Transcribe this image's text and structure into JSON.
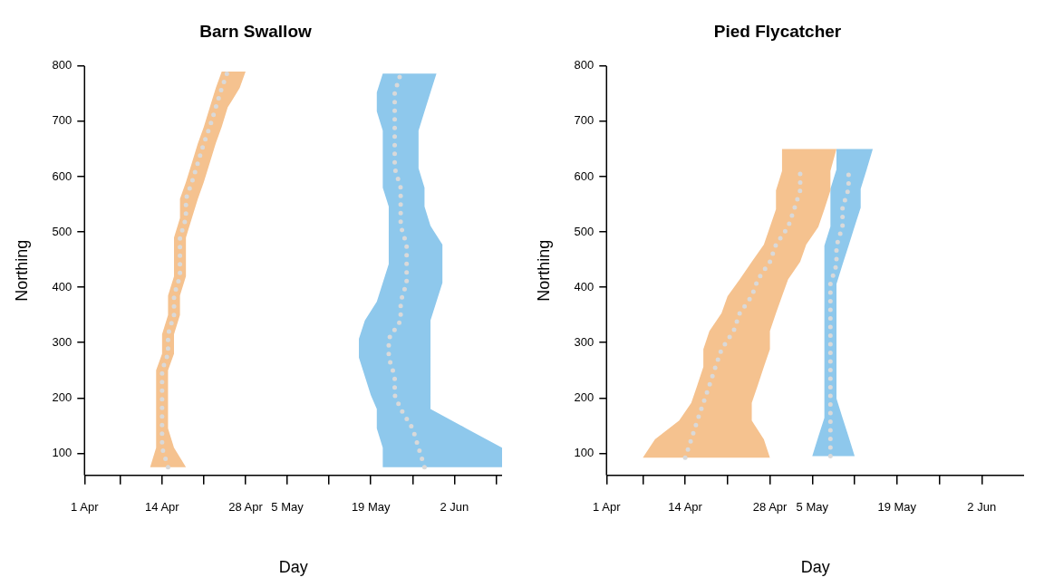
{
  "chart_data": [
    {
      "type": "line",
      "title": "Barn Swallow",
      "xlabel": "Day",
      "ylabel": "Northing",
      "xlim": [
        "--04-01",
        "--06-10"
      ],
      "ylim": [
        60,
        800
      ],
      "xticks": [
        {
          "value": "--04-01",
          "label": "1 Apr"
        },
        {
          "value": "--04-07",
          "label": null
        },
        {
          "value": "--04-14",
          "label": "14 Apr"
        },
        {
          "value": "--04-21",
          "label": null
        },
        {
          "value": "--04-28",
          "label": "28 Apr"
        },
        {
          "value": "--05-05",
          "label": "5 May"
        },
        {
          "value": "--05-12",
          "label": null
        },
        {
          "value": "--05-19",
          "label": "19 May"
        },
        {
          "value": "--05-26",
          "label": null
        },
        {
          "value": "--06-02",
          "label": "2 Jun"
        },
        {
          "value": "--06-09",
          "label": null
        }
      ],
      "yticks": [
        100,
        200,
        300,
        400,
        500,
        600,
        700,
        800
      ],
      "grid": false,
      "legend": false,
      "line_style": "dotted",
      "series": [
        {
          "type": "area",
          "color": "#f5c28f",
          "x": [
            "--04-12",
            "--04-13",
            "--04-13",
            "--04-13",
            "--04-13",
            "--04-13",
            "--04-14",
            "--04-14",
            "--04-15",
            "--04-15",
            "--04-16",
            "--04-16",
            "--04-16",
            "--04-17",
            "--04-17",
            "--04-18",
            "--04-19",
            "--04-20",
            "--04-21",
            "--04-22",
            "--04-23",
            "--04-24",
            "--04-28",
            "--04-27",
            "--04-25",
            "--04-24",
            "--04-23",
            "--04-22",
            "--04-21",
            "--04-20",
            "--04-19",
            "--04-18",
            "--04-18",
            "--04-18",
            "--04-17",
            "--04-17",
            "--04-16",
            "--04-16",
            "--04-15",
            "--04-15",
            "--04-15",
            "--04-15",
            "--04-16",
            "--04-18"
          ],
          "values": [
            75,
            110,
            145,
            180,
            215,
            250,
            280,
            315,
            350,
            385,
            420,
            455,
            490,
            525,
            560,
            590,
            625,
            660,
            690,
            725,
            760,
            790,
            790,
            760,
            725,
            690,
            660,
            625,
            590,
            560,
            525,
            490,
            455,
            420,
            385,
            350,
            315,
            280,
            250,
            215,
            180,
            145,
            110,
            75
          ]
        },
        {
          "type": "area",
          "color": "#8ec8ec",
          "x": [
            "--05-21",
            "--05-21",
            "--05-20",
            "--05-20",
            "--05-19",
            "--05-18",
            "--05-17",
            "--05-17",
            "--05-18",
            "--05-20",
            "--05-21",
            "--05-22",
            "--05-22",
            "--05-22",
            "--05-22",
            "--05-21",
            "--05-21",
            "--05-21",
            "--05-21",
            "--05-20",
            "--05-20",
            "--05-21",
            "--05-30",
            "--05-29",
            "--05-28",
            "--05-27",
            "--05-27",
            "--05-27",
            "--05-28",
            "--05-28",
            "--05-29",
            "--05-31",
            "--05-31",
            "--05-31",
            "--05-30",
            "--05-29",
            "--05-29",
            "--05-29",
            "--05-29",
            "--05-29",
            "--05-29",
            "--06-04",
            "--06-10",
            "--06-10"
          ],
          "values": [
            75,
            110,
            145,
            180,
            205,
            239,
            273,
            307,
            340,
            374,
            408,
            442,
            477,
            511,
            546,
            580,
            615,
            649,
            683,
            718,
            752,
            786,
            786,
            752,
            718,
            683,
            649,
            615,
            580,
            546,
            511,
            477,
            442,
            408,
            374,
            340,
            307,
            273,
            239,
            205,
            180,
            145,
            110,
            75
          ]
        },
        {
          "color": "#d9d9d9",
          "x": [
            "--04-15",
            "--04-14",
            "--04-14",
            "--04-14",
            "--04-14",
            "--04-14",
            "--04-15",
            "--04-15",
            "--04-16",
            "--04-16",
            "--04-17",
            "--04-17",
            "--04-17",
            "--04-18",
            "--04-18",
            "--04-19",
            "--04-20",
            "--04-21",
            "--04-22",
            "--04-23",
            "--04-24",
            "--04-25"
          ],
          "values": [
            75,
            110,
            145,
            180,
            215,
            250,
            280,
            315,
            350,
            385,
            420,
            455,
            490,
            525,
            560,
            590,
            625,
            660,
            690,
            725,
            760,
            790
          ]
        },
        {
          "color": "#d9d9d9",
          "x": [
            "--05-28",
            "--05-27",
            "--05-26",
            "--05-24",
            "--05-23",
            "--05-23",
            "--05-22",
            "--05-22",
            "--05-24",
            "--05-24",
            "--05-25",
            "--05-25",
            "--05-25",
            "--05-24",
            "--05-24",
            "--05-24",
            "--05-23",
            "--05-23",
            "--05-23",
            "--05-23",
            "--05-23",
            "--05-24"
          ],
          "values": [
            75,
            110,
            145,
            180,
            205,
            239,
            273,
            307,
            340,
            374,
            408,
            442,
            477,
            511,
            546,
            580,
            615,
            649,
            683,
            718,
            752,
            786
          ]
        }
      ]
    },
    {
      "type": "line",
      "title": "Pied Flycatcher",
      "xlabel": "Day",
      "ylabel": "Northing",
      "xlim": [
        "--04-01",
        "--06-09"
      ],
      "ylim": [
        60,
        800
      ],
      "xticks": [
        {
          "value": "--04-01",
          "label": "1 Apr"
        },
        {
          "value": "--04-07",
          "label": null
        },
        {
          "value": "--04-14",
          "label": "14 Apr"
        },
        {
          "value": "--04-21",
          "label": null
        },
        {
          "value": "--04-28",
          "label": "28 Apr"
        },
        {
          "value": "--05-05",
          "label": "5 May"
        },
        {
          "value": "--05-12",
          "label": null
        },
        {
          "value": "--05-19",
          "label": "19 May"
        },
        {
          "value": "--05-26",
          "label": null
        },
        {
          "value": "--06-02",
          "label": "2 Jun"
        }
      ],
      "yticks": [
        100,
        200,
        300,
        400,
        500,
        600,
        700,
        800
      ],
      "grid": false,
      "legend": false,
      "line_style": "dotted",
      "series": [
        {
          "type": "area",
          "color": "#f5c28f",
          "x": [
            "--04-07",
            "--04-09",
            "--04-13",
            "--04-15",
            "--04-16",
            "--04-17",
            "--04-17",
            "--04-18",
            "--04-20",
            "--04-21",
            "--04-23",
            "--04-25",
            "--04-27",
            "--04-28",
            "--04-29",
            "--04-29",
            "--04-30",
            "--04-30",
            "--05-09",
            "--05-08",
            "--05-08",
            "--05-07",
            "--05-06",
            "--05-04",
            "--05-03",
            "--05-01",
            "--04-30",
            "--04-29",
            "--04-28",
            "--04-28",
            "--04-27",
            "--04-26",
            "--04-25",
            "--04-25",
            "--04-27",
            "--04-28"
          ],
          "values": [
            92,
            125,
            159,
            191,
            223,
            256,
            288,
            321,
            353,
            384,
            414,
            446,
            477,
            509,
            541,
            575,
            610,
            650,
            650,
            610,
            575,
            541,
            509,
            477,
            446,
            414,
            384,
            353,
            321,
            288,
            256,
            223,
            191,
            159,
            125,
            92
          ]
        },
        {
          "type": "area",
          "color": "#8ec8ec",
          "x": [
            "--05-05",
            "--05-06",
            "--05-07",
            "--05-07",
            "--05-07",
            "--05-07",
            "--05-07",
            "--05-07",
            "--05-07",
            "--05-07",
            "--05-07",
            "--05-07",
            "--05-08",
            "--05-08",
            "--05-08",
            "--05-09",
            "--05-09",
            "--05-15",
            "--05-14",
            "--05-13",
            "--05-13",
            "--05-12",
            "--05-11",
            "--05-10",
            "--05-09",
            "--05-09",
            "--05-09",
            "--05-09",
            "--05-09",
            "--05-09",
            "--05-09",
            "--05-10",
            "--05-11",
            "--05-12"
          ],
          "values": [
            95,
            130,
            164,
            199,
            233,
            268,
            303,
            338,
            372,
            406,
            441,
            475,
            510,
            544,
            578,
            613,
            650,
            650,
            613,
            578,
            544,
            510,
            475,
            441,
            406,
            372,
            338,
            303,
            268,
            233,
            199,
            164,
            130,
            95
          ]
        },
        {
          "color": "#d9d9d9",
          "x": [
            "--04-14",
            "--04-15",
            "--04-16",
            "--04-17",
            "--04-18",
            "--04-19",
            "--04-20",
            "--04-22",
            "--04-23",
            "--04-25",
            "--04-26",
            "--04-28",
            "--04-29",
            "--05-01",
            "--05-02",
            "--05-03",
            "--05-03"
          ],
          "values": [
            92,
            125,
            159,
            191,
            223,
            256,
            288,
            321,
            353,
            384,
            414,
            446,
            477,
            509,
            541,
            575,
            610
          ]
        },
        {
          "color": "#d9d9d9",
          "x": [
            "--05-08",
            "--05-08",
            "--05-08",
            "--05-08",
            "--05-08",
            "--05-08",
            "--05-08",
            "--05-08",
            "--05-08",
            "--05-08",
            "--05-09",
            "--05-09",
            "--05-10",
            "--05-10",
            "--05-11",
            "--05-11"
          ],
          "values": [
            95,
            130,
            164,
            199,
            233,
            268,
            303,
            338,
            372,
            406,
            441,
            475,
            510,
            544,
            578,
            613
          ]
        }
      ]
    }
  ]
}
